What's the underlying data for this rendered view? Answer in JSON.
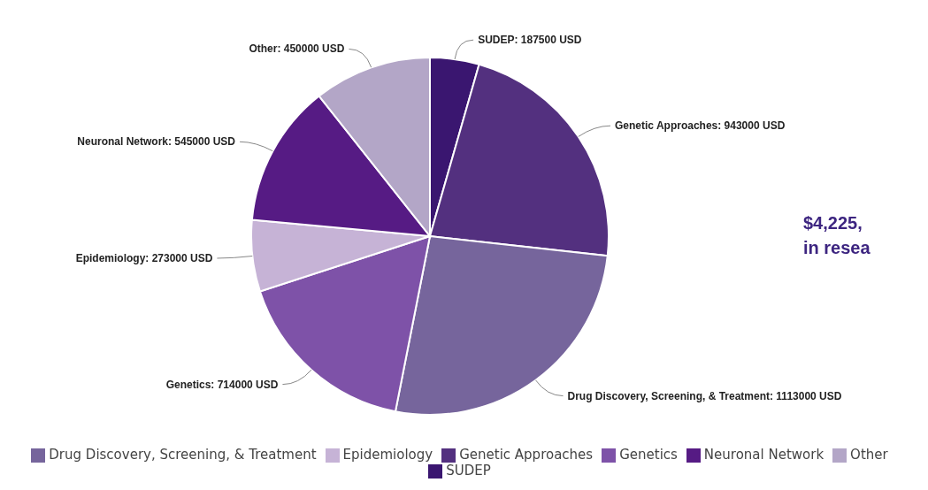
{
  "chart_data": {
    "type": "pie",
    "categories": [
      "SUDEP",
      "Genetic Approaches",
      "Drug Discovery, Screening, & Treatment",
      "Genetics",
      "Epidemiology",
      "Neuronal Network",
      "Other"
    ],
    "values": [
      187500,
      943000,
      1113000,
      714000,
      273000,
      545000,
      450000
    ],
    "value_labels": [
      "SUDEP: 187500 USD",
      "Genetic Approaches: 943000 USD",
      "Drug Discovery, Screening, & Treatment: 1113000 USD",
      "Genetics: 714000 USD",
      "Epidemiology: 273000 USD",
      "Neuronal Network: 545000 USD",
      "Other: 450000 USD"
    ],
    "colors": [
      "#3a1670",
      "#53307f",
      "#76659c",
      "#7e52a8",
      "#c6b3d6",
      "#561b84",
      "#b3a6c7"
    ],
    "annotations": [
      "$4,225,",
      "in resea"
    ],
    "legend": "bottom"
  }
}
